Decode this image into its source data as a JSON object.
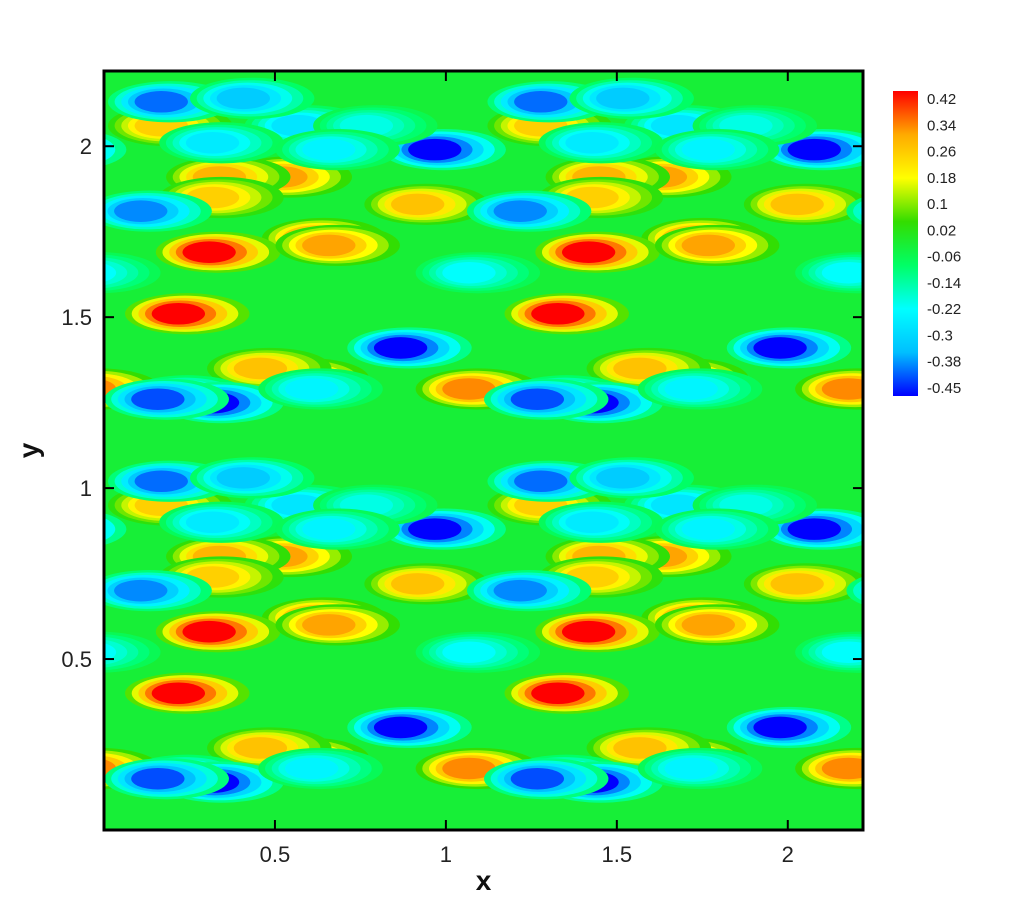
{
  "chart_data": {
    "type": "heatmap",
    "xlabel": "x",
    "ylabel": "y",
    "xlim": [
      0,
      2.22
    ],
    "ylim": [
      0,
      2.22
    ],
    "x_ticks": [
      {
        "value": 0.5,
        "label": "0.5"
      },
      {
        "value": 1,
        "label": "1"
      },
      {
        "value": 1.5,
        "label": "1.5"
      },
      {
        "value": 2,
        "label": "2"
      }
    ],
    "y_ticks": [
      {
        "value": 0.5,
        "label": "0.5"
      },
      {
        "value": 1,
        "label": "1"
      },
      {
        "value": 1.5,
        "label": "1.5"
      },
      {
        "value": 2,
        "label": "2"
      }
    ],
    "colorbar": {
      "range": [
        -0.45,
        0.42
      ],
      "levels": [
        "0.42",
        "0.34",
        "0.26",
        "0.18",
        "0.1",
        "0.02",
        "-0.06",
        "-0.14",
        "-0.22",
        "-0.3",
        "-0.38",
        "-0.45"
      ],
      "colors": [
        "#0000ff",
        "#00bfff",
        "#00ffff",
        "#00ff66",
        "#33dd00",
        "#ffff00",
        "#ffaa00",
        "#ff0000"
      ]
    },
    "period": [
      1.11,
      1.11
    ],
    "features": [
      {
        "x": 0.25,
        "y": 0.4,
        "value": 0.42
      },
      {
        "x": 0.6,
        "y": 0.21,
        "value": 0.3
      },
      {
        "x": 0.65,
        "y": 0.62,
        "value": 0.32
      },
      {
        "x": 1.45,
        "y": 0.58,
        "value": 0.42
      },
      {
        "x": 1.1,
        "y": 0.18,
        "value": 0.32
      },
      {
        "x": 0.55,
        "y": 0.8,
        "value": 0.3
      },
      {
        "x": 1.48,
        "y": 0.8,
        "value": 0.28
      },
      {
        "x": 0.2,
        "y": 0.95,
        "value": 0.24
      },
      {
        "x": 0.35,
        "y": 0.74,
        "value": 0.24
      },
      {
        "x": 1.8,
        "y": 0.6,
        "value": 0.3
      },
      {
        "x": 1.6,
        "y": 0.24,
        "value": 0.26
      },
      {
        "x": 0.95,
        "y": 0.72,
        "value": 0.26
      },
      {
        "x": 0.25,
        "y": 0.16,
        "value": -0.3
      },
      {
        "x": 0.35,
        "y": 0.14,
        "value": -0.45
      },
      {
        "x": 0.9,
        "y": 0.3,
        "value": -0.45
      },
      {
        "x": 1.3,
        "y": 0.15,
        "value": -0.4
      },
      {
        "x": 1.0,
        "y": 0.88,
        "value": -0.45
      },
      {
        "x": 0.2,
        "y": 1.02,
        "value": -0.38
      },
      {
        "x": 1.25,
        "y": 0.7,
        "value": -0.36
      },
      {
        "x": 0.6,
        "y": 0.95,
        "value": -0.25
      },
      {
        "x": 0.35,
        "y": 0.9,
        "value": -0.24
      },
      {
        "x": 1.55,
        "y": 1.03,
        "value": -0.3
      },
      {
        "x": 1.75,
        "y": 0.18,
        "value": -0.22
      },
      {
        "x": 1.1,
        "y": 0.52,
        "value": -0.2
      },
      {
        "x": 0.8,
        "y": 0.95,
        "value": -0.18
      },
      {
        "x": 1.8,
        "y": 0.88,
        "value": -0.22
      }
    ]
  }
}
